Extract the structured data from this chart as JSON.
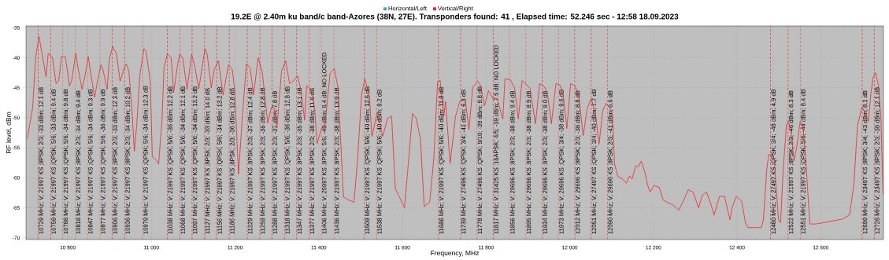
{
  "chart_data": {
    "type": "line",
    "title": "19.2E @ 2.40m ku band/c band-Azores (38N, 27E). Transponders found: 41 , Elapsed time: 52.246 sec - 12:58 18.09.2023",
    "xlabel": "Frequency, MHz",
    "ylabel": "RF level, dBm",
    "xlim": [
      10700,
      12750
    ],
    "ylim": [
      -70.3,
      -34.7
    ],
    "xticks": [
      {
        "value": 10800,
        "label": "10 800"
      },
      {
        "value": 11000,
        "label": "11 000"
      },
      {
        "value": 11200,
        "label": "11 200"
      },
      {
        "value": 11400,
        "label": "11 400"
      },
      {
        "value": 11600,
        "label": "11 600"
      },
      {
        "value": 11800,
        "label": "11 800"
      },
      {
        "value": 12000,
        "label": "12 000"
      },
      {
        "value": 12200,
        "label": "12 200"
      },
      {
        "value": 12400,
        "label": "12 400"
      },
      {
        "value": 12600,
        "label": "12 600"
      }
    ],
    "yticks": [
      -35,
      -40,
      -45,
      -50,
      -55,
      -60,
      -65,
      -70
    ],
    "grid": true,
    "legend": "top",
    "series": [
      {
        "name": "Horizontal/Left",
        "color": "#3fa0e8"
      },
      {
        "name": "Vertical/Right",
        "color": "#e82a2a",
        "x": [
          10703,
          10716,
          10723,
          10731,
          10748,
          10753,
          10763,
          10772,
          10778,
          10785,
          10794,
          10804,
          10809,
          10819,
          10824,
          10834,
          10841,
          10849,
          10854,
          10864,
          10871,
          10879,
          10884,
          10894,
          10899,
          10907,
          10916,
          10925,
          10935,
          10940,
          10946,
          10954,
          10959,
          10965,
          10972,
          10982,
          10987,
          10997,
          11002,
          11012,
          11017,
          11025,
          11030,
          11038,
          11047,
          11053,
          11062,
          11068,
          11075,
          11085,
          11096,
          11103,
          11113,
          11128,
          11133,
          11143,
          11150,
          11160,
          11171,
          11184,
          11193,
          11199,
          11208,
          11218,
          11227,
          11236,
          11244,
          11255,
          11265,
          11278,
          11287,
          11294,
          11300,
          11311,
          11321,
          11330,
          11339,
          11349,
          11358,
          11366,
          11371,
          11381,
          11390,
          11396,
          11403,
          11409,
          11414,
          11427,
          11437,
          11446,
          11459,
          11471,
          11484,
          11493,
          11502,
          11510,
          11521,
          11527,
          11540,
          11553,
          11564,
          11574,
          11583,
          11605,
          11615,
          11624,
          11633,
          11643,
          11652,
          11665,
          11675,
          11684,
          11690,
          11699,
          11703,
          11714,
          11727,
          11737,
          11750,
          11759,
          11768,
          11780,
          11787,
          11796,
          11806,
          11817,
          11826,
          11840,
          11845,
          11858,
          11868,
          11877,
          11886,
          11896,
          11905,
          11918,
          11928,
          11937,
          11946,
          11956,
          11967,
          11976,
          11984,
          11993,
          12002,
          12012,
          12021,
          12032,
          12042,
          12051,
          12061,
          12070,
          12079,
          12087,
          12096,
          12102,
          12107,
          12115,
          12126,
          12135,
          12143,
          12149,
          12158,
          12164,
          12171,
          12180,
          12186,
          12192,
          12201,
          12214,
          12223,
          12233,
          12246,
          12261,
          12274,
          12283,
          12295,
          12308,
          12317,
          12327,
          12336,
          12345,
          12358,
          12370,
          12383,
          12388,
          12398,
          12411,
          12420,
          12426,
          12458,
          12463,
          12471,
          12476,
          12486,
          12489,
          12499,
          12504,
          12510,
          12518,
          12523,
          12529,
          12536,
          12542,
          12551,
          12557,
          12564,
          12574,
          12589,
          12621,
          12651,
          12669,
          12679,
          12688,
          12699,
          12707,
          12714,
          12720,
          12725,
          12731,
          12738,
          12744,
          12749
        ],
        "values": [
          -53.5,
          -48.3,
          -40.0,
          -36.4,
          -43.2,
          -39.3,
          -39.9,
          -44.3,
          -43.9,
          -39.8,
          -39.8,
          -44.7,
          -43.9,
          -39.3,
          -41.6,
          -45.3,
          -43.0,
          -39.8,
          -42.3,
          -46.6,
          -43.9,
          -41.2,
          -42.0,
          -45.3,
          -40.4,
          -38.1,
          -39.3,
          -43.9,
          -41.7,
          -41.0,
          -42.3,
          -49.6,
          -55.6,
          -51.0,
          -43.0,
          -38.5,
          -38.9,
          -43.9,
          -56.5,
          -57.1,
          -57.7,
          -50.5,
          -41.7,
          -39.3,
          -40.0,
          -45.8,
          -41.3,
          -39.4,
          -40.1,
          -45.3,
          -39.4,
          -41.3,
          -45.2,
          -38.5,
          -39.4,
          -45.0,
          -42.0,
          -40.5,
          -46.2,
          -41.2,
          -41.9,
          -45.3,
          -59.4,
          -49.2,
          -41.0,
          -41.7,
          -46.2,
          -40.0,
          -42.5,
          -50.9,
          -48.2,
          -48.4,
          -51.7,
          -42.2,
          -40.5,
          -44.3,
          -43.9,
          -43.0,
          -45.6,
          -50.4,
          -44.7,
          -45.2,
          -48.4,
          -54.3,
          -52.6,
          -51.4,
          -51.7,
          -42.6,
          -41.8,
          -45.0,
          -63.2,
          -63.7,
          -64.1,
          -56.8,
          -46.3,
          -43.5,
          -46.4,
          -53.1,
          -49.0,
          -53.1,
          -50.2,
          -49.7,
          -61.8,
          -65.0,
          -56.8,
          -49.3,
          -50.1,
          -53.6,
          -64.8,
          -64.1,
          -56.8,
          -44.0,
          -43.8,
          -49.7,
          -47.3,
          -57.6,
          -49.7,
          -47.3,
          -46.9,
          -52.0,
          -44.9,
          -43.9,
          -44.7,
          -48.0,
          -45.5,
          -46.9,
          -46.8,
          -50.2,
          -43.5,
          -43.7,
          -45.0,
          -50.2,
          -43.8,
          -44.4,
          -45.1,
          -51.0,
          -44.3,
          -44.7,
          -45.6,
          -51.0,
          -44.3,
          -44.5,
          -46.0,
          -51.8,
          -44.3,
          -44.7,
          -46.0,
          -53.0,
          -48.4,
          -46.8,
          -49.0,
          -54.4,
          -48.8,
          -47.6,
          -48.4,
          -49.4,
          -57.7,
          -59.8,
          -60.2,
          -60.9,
          -59.7,
          -60.2,
          -58.0,
          -58.2,
          -57.2,
          -59.2,
          -61.2,
          -62.4,
          -61.3,
          -61.6,
          -63.7,
          -64.1,
          -64.5,
          -65.4,
          -63.5,
          -62.0,
          -62.4,
          -65.0,
          -62.9,
          -62.4,
          -64.1,
          -66.2,
          -63.1,
          -63.1,
          -67.0,
          -65.0,
          -63.1,
          -63.9,
          -67.5,
          -68.3,
          -68.3,
          -67.0,
          -58.5,
          -56.1,
          -56.3,
          -57.2,
          -67.0,
          -67.5,
          -58.9,
          -51.2,
          -50.6,
          -52.2,
          -57.2,
          -55.1,
          -50.6,
          -51.2,
          -56.8,
          -67.7,
          -67.7,
          -67.3,
          -66.9,
          -66.2,
          -61.2,
          -51.2,
          -48.2,
          -49.4,
          -50.6,
          -45.9,
          -43.3,
          -42.5,
          -44.6,
          -50.2,
          -62.8
        ]
      }
    ],
    "ref_lines": [
      {
        "axis": "x",
        "value": 10729,
        "label": "10729 MHz; V; 21997 KS ;8PSK; 2/3; -33 dBm; 12.1 dB",
        "color": "#e02020",
        "line_style": "dashed"
      },
      {
        "axis": "x",
        "value": 10759,
        "label": "10759 MHz; V; 21997 KS ;QPSK; 5/6; -33 dBm; 9.4 dB",
        "color": "#e02020",
        "line_style": "dashed"
      },
      {
        "axis": "x",
        "value": 10788,
        "label": "10788 MHz; V; 21997 KS ;QPSK; 5/6; -34 dBm; 9.8 dB",
        "color": "#e02020",
        "line_style": "dashed"
      },
      {
        "axis": "x",
        "value": 10818,
        "label": "10818 MHz; V; 21997 KS ;8PSK; 2/3; -34 dBm; 9.4 dB",
        "color": "#e02020",
        "line_style": "dashed"
      },
      {
        "axis": "x",
        "value": 10847,
        "label": "10847 MHz; V; 21997 KS ;QPSK; 5/6; -34 dBm; 9.3 dB",
        "color": "#e02020",
        "line_style": "dashed"
      },
      {
        "axis": "x",
        "value": 10877,
        "label": "10877 MHz; V; 21997 KS ;QPSK; 5/6; -36 dBm; 9.9 dB",
        "color": "#e02020",
        "line_style": "dashed"
      },
      {
        "axis": "x",
        "value": 10906,
        "label": "10906 MHz; V; 21997 KS ;8PSK; 2/3; -33 dBm; 12.3 dB",
        "color": "#e02020",
        "line_style": "dashed"
      },
      {
        "axis": "x",
        "value": 10936,
        "label": "10936 MHz; V; 21997 KS ;8PSK; 2/3; -34 dBm; 10.2 dB",
        "color": "#e02020",
        "line_style": "dashed"
      },
      {
        "axis": "x",
        "value": 10979,
        "label": "10979 MHz; V; 21997 KS ;QPSK; 5/6; -34 dBm; 12.3 dB",
        "color": "#e02020",
        "line_style": "dashed"
      },
      {
        "axis": "x",
        "value": 11038,
        "label": "11038 MHz; V; 21997 KS ;QPSK; 5/6; -36 dBm; 12.2 dB",
        "color": "#e02020",
        "line_style": "dashed"
      },
      {
        "axis": "x",
        "value": 11068,
        "label": "11068 MHz; V; 21997 KS ;QPSK; 5/6; -34 dBm; 12.1 dB",
        "color": "#e02020",
        "line_style": "dashed"
      },
      {
        "axis": "x",
        "value": 11097,
        "label": "11097 MHz; V; 21997 KS ;QPSK; 5/6; -34 dBm; 13.2 dB",
        "color": "#e02020",
        "line_style": "dashed"
      },
      {
        "axis": "x",
        "value": 11127,
        "label": "11127 MHz; V; 21997 KS ;8PSK; 2/3; -33 dBm; 14.0 dB",
        "color": "#e02020",
        "line_style": "dashed"
      },
      {
        "axis": "x",
        "value": 11156,
        "label": "11156 MHz; V; 21997 KS ;QPSK; 5/6; -34 dBm; 13.2 dB",
        "color": "#e02020",
        "line_style": "dashed"
      },
      {
        "axis": "x",
        "value": 11186,
        "label": "11186 MHz; V; 21997 KS ;8PSK; 2/3; -36 dBm; 12.8 dB",
        "color": "#e02020",
        "line_style": "dashed"
      },
      {
        "axis": "x",
        "value": 11229,
        "label": "11229 MHz; V; 21997 KS ;8PSK; 2/3; -37 dBm; 12.4 dB",
        "color": "#e02020",
        "line_style": "dashed"
      },
      {
        "axis": "x",
        "value": 11259,
        "label": "11259 MHz; V; 21997 KS ;8PSK; 2/3; -36 dBm; 12.8 dB",
        "color": "#e02020",
        "line_style": "dashed"
      },
      {
        "axis": "x",
        "value": 11288,
        "label": "11288 MHz; V; 21997 KS ;8PSK; 2/3; -37 dBm; 7.8 dB",
        "color": "#e02020",
        "line_style": "dashed"
      },
      {
        "axis": "x",
        "value": 11318,
        "label": "11318 MHz; V; 21997 KS ;QPSK; 5/6; -36 dBm; 12.8 dB",
        "color": "#e02020",
        "line_style": "dashed"
      },
      {
        "axis": "x",
        "value": 11347,
        "label": "11347 MHz; V; 21997 KS ;8PSK; 2/3; -35 dBm; 13.1 dB",
        "color": "#e02020",
        "line_style": "dashed"
      },
      {
        "axis": "x",
        "value": 11377,
        "label": "11377 MHz; V; 21997 KS ;8PSK; 2/3; -38 dBm; 11.6 dB",
        "color": "#e02020",
        "line_style": "dashed"
      },
      {
        "axis": "x",
        "value": 11406,
        "label": "11406 MHz; V; 25997 KS ;8PSK; 5/6; -40 dBm; 6.4 dB; NO LOCKED",
        "color": "#e02020",
        "line_style": "dashed"
      },
      {
        "axis": "x",
        "value": 11436,
        "label": "11436 MHz; V; 21997 KS ;8PSK; 2/3; -38 dBm; 13.9 dB",
        "color": "#e02020",
        "line_style": "dashed"
      },
      {
        "axis": "x",
        "value": 11509,
        "label": "11509 MHz; V; 21997 KS ;QPSK; 5/6; -40 dBm; 12.6 dB",
        "color": "#e02020",
        "line_style": "dashed"
      },
      {
        "axis": "x",
        "value": 11538,
        "label": "11538 MHz; V; 21997 KS ;QPSK; 5/6; -40 dBm; 9.2 dB",
        "color": "#e02020",
        "line_style": "dashed"
      },
      {
        "axis": "x",
        "value": 11686,
        "label": "11686 MHz; V; 21997 KS ;QPSK; 5/6; -40 dBm; 11.9 dB",
        "color": "#e02020",
        "line_style": "dashed"
      },
      {
        "axis": "x",
        "value": 11739,
        "label": "11739 MHz; V; 27496 KS ;QPSK; 3/4; -41 dBm; 6.3 dB",
        "color": "#e02020",
        "line_style": "dashed"
      },
      {
        "axis": "x",
        "value": 11778,
        "label": "11778 MHz; V; 27496 KS ;QPSK; 9/10; -39 dBm; 9.8 dB",
        "color": "#e02020",
        "line_style": "dashed"
      },
      {
        "axis": "x",
        "value": 11817,
        "label": "11817 MHz; V; 31425 KS ;16APSK; 4/5; -39 dBm; 7.5 dB; NO LOCKED",
        "color": "#e02020",
        "line_style": "dashed"
      },
      {
        "axis": "x",
        "value": 11856,
        "label": "11856 MHz; V; 29696 KS ;8PSK; 2/3; -38 dBm; 9.4 dB",
        "color": "#e02020",
        "line_style": "dashed"
      },
      {
        "axis": "x",
        "value": 11895,
        "label": "11895 MHz; V; 29696 KS ;8PSK; 2/3; -38 dBm; 8.9 dB",
        "color": "#e02020",
        "line_style": "dashed"
      },
      {
        "axis": "x",
        "value": 11934,
        "label": "11934 MHz; V; 29696 KS ;8PSK; 2/3; -38 dBm; 9.0 dB",
        "color": "#e02020",
        "line_style": "dashed"
      },
      {
        "axis": "x",
        "value": 11973,
        "label": "11973 MHz; V; 29696 KS ;QPSK; 3/4; -38 dBm; 9.6 dB",
        "color": "#e02020",
        "line_style": "dashed"
      },
      {
        "axis": "x",
        "value": 12012,
        "label": "12012 MHz; V; 29696 KS ;8PSK; 2/3; -38 dBm; 8.8 dB",
        "color": "#e02020",
        "line_style": "dashed"
      },
      {
        "axis": "x",
        "value": 12051,
        "label": "12051 MHz; V; 27497 KS ;QPSK; 3/4; -40 dBm; 7.7 dB",
        "color": "#e02020",
        "line_style": "dashed"
      },
      {
        "axis": "x",
        "value": 12090,
        "label": "12090 MHz; V; 29696 KS ;8PSK; 2/3; -41 dBm; 6.6 dB",
        "color": "#e02020",
        "line_style": "dashed"
      },
      {
        "axis": "x",
        "value": 12480,
        "label": "12480 MHz; V; 27497 KS ;QPSK; 3/4; -48 dBm; 4.9 dB",
        "color": "#e02020",
        "line_style": "dashed"
      },
      {
        "axis": "x",
        "value": 12522,
        "label": "12522 MHz; V; 21997 KS ;8PSK; 2/3; -46 dBm; 8.3 dB",
        "color": "#e02020",
        "line_style": "dashed"
      },
      {
        "axis": "x",
        "value": 12551,
        "label": "12551 MHz; V; 21997 KS ;QPSK; 5/6; -44 dBm; 8.4 dB",
        "color": "#e02020",
        "line_style": "dashed"
      },
      {
        "axis": "x",
        "value": 12699,
        "label": "12699 MHz; V; 23497 KS ;8PSK; 3/4; -43 dBm; 8.1 dB",
        "color": "#e02020",
        "line_style": "dashed"
      },
      {
        "axis": "x",
        "value": 12728,
        "label": "12728 MHz; V; 23497 KS ;8PSK; 2/3; -38 dBm; 12.1 dB",
        "color": "#e02020",
        "line_style": "dashed"
      }
    ]
  }
}
